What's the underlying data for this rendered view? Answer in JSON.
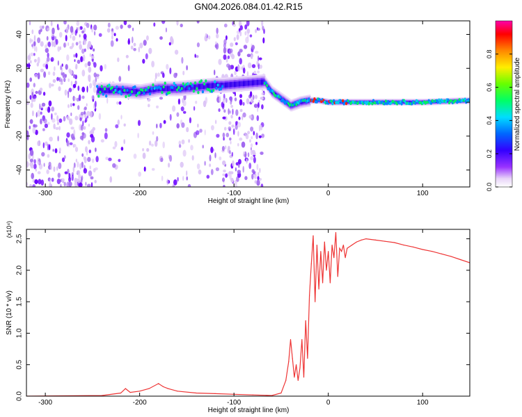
{
  "title": "GN04.2026.084.01.42.R15",
  "chart_data": [
    {
      "type": "heatmap",
      "xlabel": "Height of straight line (km)",
      "ylabel": "Frequency (Hz)",
      "xlim": [
        -320,
        150
      ],
      "ylim": [
        -50,
        48
      ],
      "x_ticks": [
        -300,
        -200,
        -100,
        0,
        100
      ],
      "y_ticks": [
        -40,
        -20,
        0,
        20,
        40
      ],
      "colorbar": {
        "label": "Normalized spectral amplitude",
        "range": [
          0,
          1
        ],
        "ticks": [
          "0.0",
          "0.2",
          "0.4",
          "0.6",
          "0.8"
        ]
      },
      "trace_points": [
        {
          "x": -245,
          "y": 7
        },
        {
          "x": -220,
          "y": 7
        },
        {
          "x": -200,
          "y": 6
        },
        {
          "x": -180,
          "y": 8
        },
        {
          "x": -160,
          "y": 8
        },
        {
          "x": -140,
          "y": 9
        },
        {
          "x": -120,
          "y": 10
        },
        {
          "x": -112,
          "y": 10
        },
        {
          "x": -68,
          "y": 12
        },
        {
          "x": -60,
          "y": 6
        },
        {
          "x": -50,
          "y": 2
        },
        {
          "x": -40,
          "y": -2
        },
        {
          "x": -30,
          "y": 0
        },
        {
          "x": -20,
          "y": 1
        },
        {
          "x": -10,
          "y": 1
        },
        {
          "x": 0,
          "y": 0
        },
        {
          "x": 20,
          "y": 0
        },
        {
          "x": 60,
          "y": 0
        },
        {
          "x": 100,
          "y": 0
        },
        {
          "x": 150,
          "y": 1
        }
      ]
    },
    {
      "type": "line",
      "xlabel": "Height of straight line (km)",
      "ylabel": "SNR (10 * v/v)",
      "y_multiplier": "(x10⁴)",
      "xlim": [
        -320,
        150
      ],
      "ylim": [
        0,
        2.65
      ],
      "x_ticks": [
        -300,
        -200,
        -100,
        0,
        100
      ],
      "y_ticks": [
        "0.0",
        "0.5",
        "1.0",
        "1.5",
        "2.0",
        "2.5"
      ],
      "series": [
        {
          "color": "#ee3333",
          "x": [
            -320,
            -240,
            -220,
            -215,
            -210,
            -200,
            -190,
            -180,
            -175,
            -170,
            -160,
            -140,
            -120,
            -100,
            -80,
            -60,
            -50,
            -45,
            -42,
            -40,
            -38,
            -36,
            -34,
            -32,
            -30,
            -28,
            -26,
            -24,
            -22,
            -20,
            -18,
            -16,
            -14,
            -12,
            -10,
            -8,
            -6,
            -4,
            -2,
            0,
            2,
            4,
            6,
            8,
            10,
            12,
            14,
            16,
            18,
            20,
            25,
            30,
            35,
            40,
            50,
            60,
            70,
            80,
            90,
            100,
            110,
            120,
            130,
            140,
            150
          ],
          "y": [
            0.0,
            0.01,
            0.05,
            0.12,
            0.06,
            0.08,
            0.12,
            0.2,
            0.15,
            0.12,
            0.08,
            0.05,
            0.04,
            0.03,
            0.02,
            0.01,
            0.05,
            0.25,
            0.55,
            0.9,
            0.6,
            0.3,
            0.5,
            0.25,
            0.45,
            0.9,
            0.3,
            1.2,
            0.6,
            1.6,
            2.1,
            2.55,
            1.5,
            2.4,
            1.7,
            2.3,
            1.8,
            2.45,
            2.0,
            2.3,
            1.8,
            2.4,
            2.2,
            2.6,
            1.9,
            2.35,
            2.3,
            2.4,
            2.2,
            2.35,
            2.4,
            2.45,
            2.48,
            2.5,
            2.48,
            2.46,
            2.44,
            2.4,
            2.37,
            2.33,
            2.3,
            2.26,
            2.22,
            2.17,
            2.12
          ]
        }
      ]
    }
  ]
}
